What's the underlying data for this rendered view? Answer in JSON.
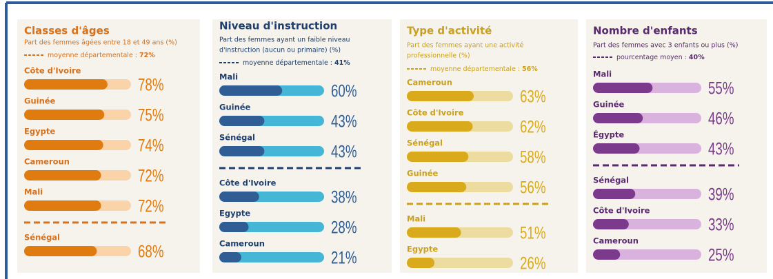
{
  "chart_data": [
    {
      "type": "bar",
      "orientation": "horizontal",
      "title": "Classes d'âges",
      "subtitle": [
        "Part des femmes âgées entre 18 et 49 ans (%)"
      ],
      "average_text": "moyenne départementale :",
      "average": 72,
      "average_label": "72%",
      "categories": [
        "Côte d'Ivoire",
        "Guinée",
        "Egypte",
        "Cameroun",
        "Mali",
        "Sénégal"
      ],
      "values": [
        78,
        75,
        74,
        72,
        72,
        68
      ],
      "value_labels": [
        "78%",
        "75%",
        "74%",
        "72%",
        "72%",
        "68%"
      ],
      "color": "#e07b10",
      "track_color": "#fbd3a8",
      "title_color": "#d9701a",
      "xlim": [
        0,
        100
      ]
    },
    {
      "type": "bar",
      "orientation": "horizontal",
      "title": "Niveau d'instruction",
      "subtitle": [
        "Part des femmes ayant un faible niveau",
        "d'instruction (aucun ou primaire) (%)"
      ],
      "average_text": "moyenne départementale :",
      "average": 41,
      "average_label": "41%",
      "categories": [
        "Mali",
        "Guinée",
        "Sénégal",
        "Côte d'Ivoire",
        "Egypte",
        "Cameroun"
      ],
      "values": [
        60,
        43,
        43,
        38,
        28,
        21
      ],
      "value_labels": [
        "60%",
        "43%",
        "43%",
        "38%",
        "28%",
        "21%"
      ],
      "color": "#2f5d94",
      "track_color": "#45b6d6",
      "title_color": "#1f3f6e",
      "xlim": [
        0,
        100
      ]
    },
    {
      "type": "bar",
      "orientation": "horizontal",
      "title": "Type d'activité",
      "subtitle": [
        "Part des femmes ayant une activité",
        "professionnelle (%)"
      ],
      "average_text": "moyenne départementale :",
      "average": 56,
      "average_label": "56%",
      "categories": [
        "Cameroun",
        "Côte d'Ivoire",
        "Sénégal",
        "Guinée",
        "Mali",
        "Egypte"
      ],
      "values": [
        63,
        62,
        58,
        56,
        51,
        26
      ],
      "value_labels": [
        "63%",
        "62%",
        "58%",
        "56%",
        "51%",
        "26%"
      ],
      "color": "#d9ab1c",
      "track_color": "#ecdca0",
      "title_color": "#c9a020",
      "xlim": [
        0,
        100
      ]
    },
    {
      "type": "bar",
      "orientation": "horizontal",
      "title": "Nombre d'enfants",
      "subtitle": [
        "Part des femmes avec 3 enfants ou plus (%)"
      ],
      "average_text": "pourcentage moyen :",
      "average": 40,
      "average_label": "40%",
      "categories": [
        "Mali",
        "Guinée",
        "Égypte",
        "Sénégal",
        "Côte d'Ivoire",
        "Cameroun"
      ],
      "values": [
        55,
        46,
        43,
        39,
        33,
        25
      ],
      "value_labels": [
        "55%",
        "46%",
        "43%",
        "39%",
        "33%",
        "25%"
      ],
      "color": "#7b3a8c",
      "track_color": "#d9b3de",
      "title_color": "#5a2a6e",
      "xlim": [
        0,
        100
      ]
    }
  ]
}
